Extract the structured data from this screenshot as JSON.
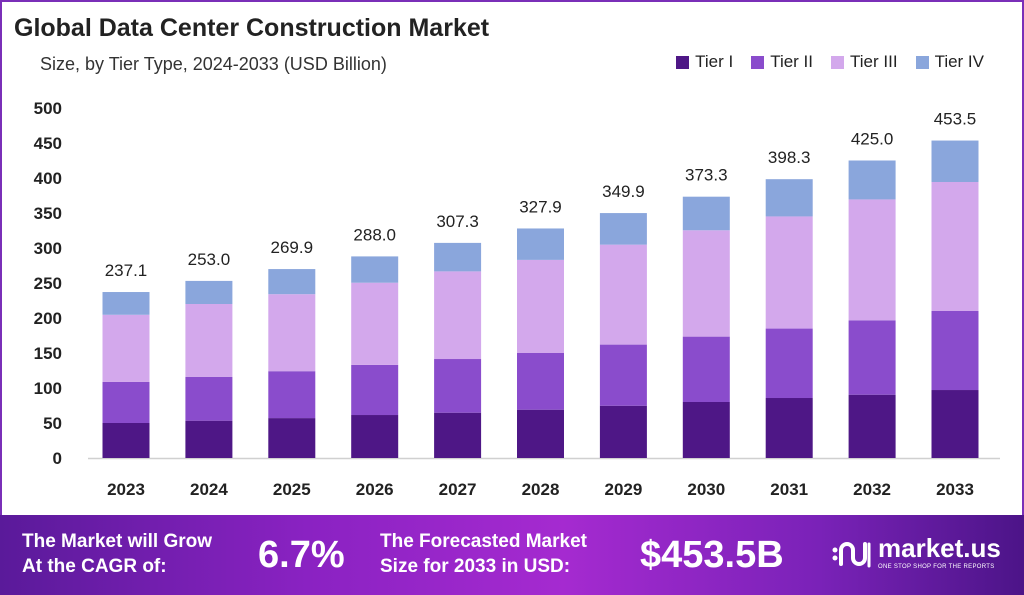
{
  "chart_data": {
    "type": "bar",
    "stacked": true,
    "title": "Global Data Center Construction Market",
    "subtitle": "Size, by Tier Type, 2024-2033 (USD Billion)",
    "categories": [
      "2023",
      "2024",
      "2025",
      "2026",
      "2027",
      "2028",
      "2029",
      "2030",
      "2031",
      "2032",
      "2033"
    ],
    "series": [
      {
        "name": "Tier I",
        "color": "#4e1786",
        "values": [
          50.0,
          53.3,
          57.0,
          61.4,
          64.7,
          69.0,
          74.6,
          80.0,
          85.7,
          90.4,
          97.1
        ]
      },
      {
        "name": "Tier II",
        "color": "#8a4ccc",
        "values": [
          58.6,
          62.7,
          67.0,
          71.6,
          76.7,
          81.0,
          87.4,
          93.4,
          99.2,
          106.3,
          112.9
        ]
      },
      {
        "name": "Tier III",
        "color": "#d3a8ec",
        "values": [
          96.0,
          104.0,
          110.0,
          117.4,
          125.2,
          133.0,
          142.8,
          151.9,
          160.2,
          172.7,
          184.3
        ]
      },
      {
        "name": "Tier IV",
        "color": "#8aa6dc",
        "values": [
          32.5,
          33.0,
          35.9,
          37.6,
          40.7,
          44.9,
          45.1,
          48.0,
          53.2,
          55.6,
          59.2
        ]
      }
    ],
    "totals": [
      "237.1",
      "253.0",
      "269.9",
      "288.0",
      "307.3",
      "327.9",
      "349.9",
      "373.3",
      "398.3",
      "425.0",
      "453.5"
    ],
    "yticks": [
      0,
      50,
      100,
      150,
      200,
      250,
      300,
      350,
      400,
      450,
      500
    ],
    "ylim": [
      0,
      500
    ],
    "grid": false,
    "legend": "top-right"
  },
  "banner": {
    "cagr_label_1": "The Market will Grow",
    "cagr_label_2": "At the CAGR of:",
    "cagr_value": "6.7%",
    "forecast_label_1": "The Forecasted Market",
    "forecast_label_2": "Size for 2033 in USD:",
    "forecast_value": "$453.5B",
    "logo_name": "market.us",
    "logo_tagline": "ONE STOP SHOP FOR THE REPORTS"
  }
}
